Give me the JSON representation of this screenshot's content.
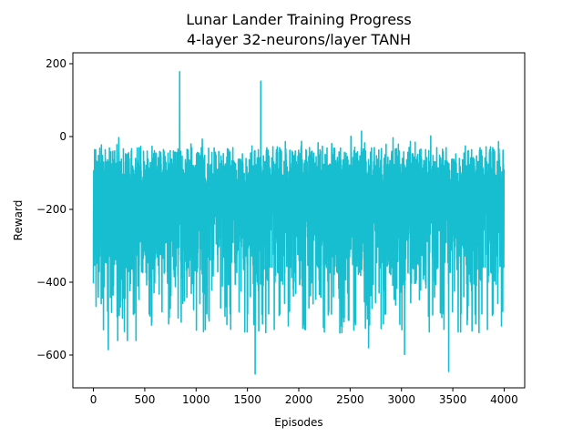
{
  "chart_data": {
    "type": "line",
    "title_line1": "Lunar Lander Training Progress",
    "title_line2": "4-layer 32-neurons/layer TANH",
    "xlabel": "Episodes",
    "ylabel": "Reward",
    "xlim": [
      -200,
      4200
    ],
    "ylim": [
      -690,
      230
    ],
    "xticks": [
      0,
      500,
      1000,
      1500,
      2000,
      2500,
      3000,
      3500,
      4000
    ],
    "xtick_labels": [
      "0",
      "500",
      "1000",
      "1500",
      "2000",
      "2500",
      "3000",
      "3500",
      "4000"
    ],
    "yticks": [
      -600,
      -400,
      -200,
      0,
      200
    ],
    "ytick_labels": [
      "−600",
      "−400",
      "−200",
      "0",
      "200"
    ],
    "grid": false,
    "legend": "none",
    "series_color": "#17becf",
    "episodes": 4000,
    "notable_points": [
      {
        "x": 840,
        "y": 178
      },
      {
        "x": 1630,
        "y": 152
      },
      {
        "x": 1575,
        "y": -652
      },
      {
        "x": 3460,
        "y": -645
      },
      {
        "x": 145,
        "y": -585
      },
      {
        "x": 2680,
        "y": -580
      },
      {
        "x": 3030,
        "y": -598
      }
    ]
  }
}
